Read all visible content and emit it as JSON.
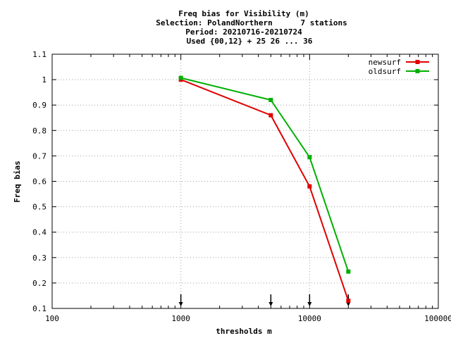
{
  "chart_data": {
    "type": "line",
    "title_lines": [
      "Freq bias  for Visibility (m)",
      "Selection: PolandNorthern      7 stations",
      "Period: 20210716-20210724",
      "Used {00,12} + 25 26 ... 36"
    ],
    "xlabel": "thresholds m",
    "ylabel": "Freq bias",
    "x_scale": "log",
    "xlim": [
      100,
      100000
    ],
    "ylim": [
      0.1,
      1.1
    ],
    "x_ticks": [
      100,
      1000,
      10000,
      100000
    ],
    "x_tick_labels": [
      "100",
      "1000",
      "10000",
      "100000"
    ],
    "y_ticks": [
      0.1,
      0.2,
      0.3,
      0.4,
      0.5,
      0.6,
      0.7,
      0.8,
      0.9,
      1.0,
      1.1
    ],
    "y_tick_labels": [
      "0.1",
      "0.2",
      "0.3",
      "0.4",
      "0.5",
      "0.6",
      "0.7",
      "0.8",
      "0.9",
      "1",
      "1.1"
    ],
    "legend_position": "top-right",
    "arrow_marks_x": [
      1000,
      5000,
      10000,
      20000
    ],
    "series": [
      {
        "name": "newsurf",
        "color": "#e00000",
        "x": [
          1000,
          5000,
          10000,
          20000
        ],
        "values": [
          1.0,
          0.86,
          0.58,
          0.13
        ]
      },
      {
        "name": "oldsurf",
        "color": "#00b000",
        "x": [
          1000,
          5000,
          10000,
          20000
        ],
        "values": [
          1.007,
          0.92,
          0.695,
          0.245
        ]
      }
    ]
  }
}
